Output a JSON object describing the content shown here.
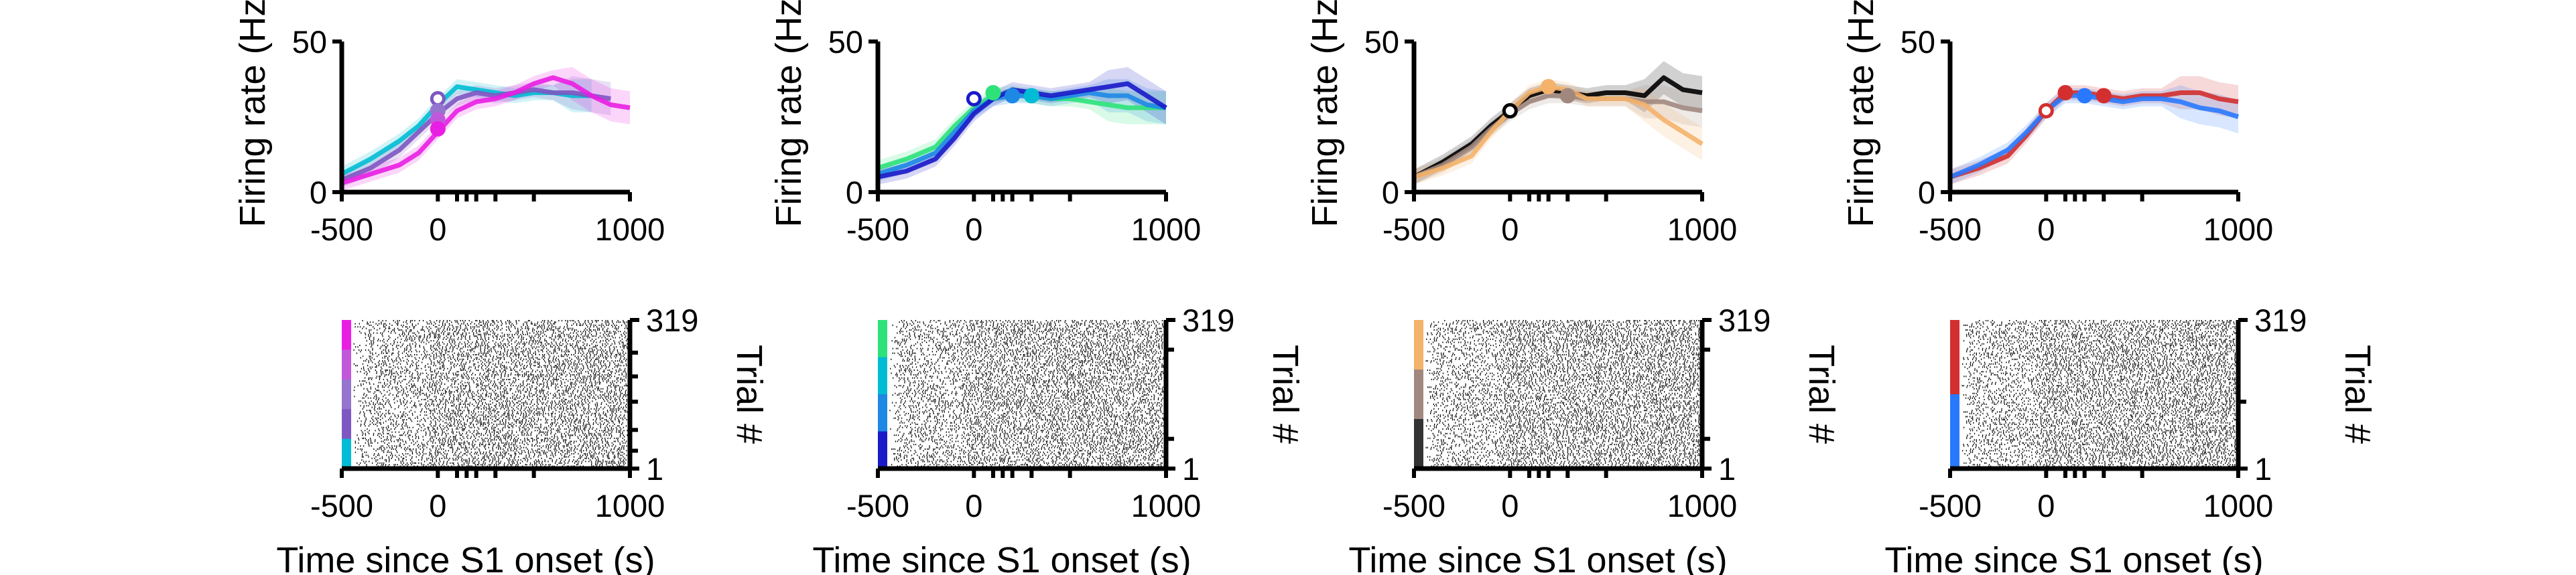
{
  "chart_data": [
    {
      "type": "line",
      "panel": "A-top",
      "ylabel": "Firing rate (Hz)",
      "xlim": [
        -500,
        1000
      ],
      "ylim": [
        0,
        50
      ],
      "xticks": [
        -500,
        0,
        1000
      ],
      "yticks": [
        0,
        50
      ],
      "minor_xticks": [
        100,
        150,
        200,
        300,
        500
      ],
      "series": [
        {
          "color": "#00bcd4",
          "x": [
            -500,
            -350,
            -200,
            -100,
            0,
            100,
            200,
            300,
            400,
            500,
            600,
            700,
            800
          ],
          "y": [
            6,
            11,
            17,
            22,
            29,
            35,
            34,
            33,
            32,
            33,
            33,
            32,
            32
          ]
        },
        {
          "color": "#7e57c2",
          "x": [
            -500,
            -350,
            -200,
            -100,
            0,
            100,
            200,
            300,
            400,
            500,
            600,
            700,
            800,
            900
          ],
          "y": [
            4,
            8,
            14,
            20,
            26,
            31,
            33,
            32,
            33,
            34,
            33,
            33,
            32,
            31
          ]
        },
        {
          "color": "#e91ee3",
          "x": [
            -500,
            -350,
            -200,
            -100,
            0,
            100,
            200,
            300,
            400,
            500,
            600,
            700,
            800,
            900,
            1000
          ],
          "y": [
            3,
            6,
            9,
            13,
            20,
            27,
            30,
            31,
            33,
            36,
            38,
            36,
            32,
            29,
            28
          ]
        }
      ],
      "markers": [
        {
          "color": "#7e57c2",
          "x": 0,
          "y": 31
        },
        {
          "color": "#9575cd",
          "x": 0,
          "y": 27
        },
        {
          "color": "#c158dc",
          "x": 0,
          "y": 24
        },
        {
          "color": "#e91ee3",
          "x": 0,
          "y": 21
        }
      ]
    },
    {
      "type": "line",
      "panel": "B-top",
      "ylabel": "Firing rate (Hz)",
      "xlim": [
        -500,
        1000
      ],
      "ylim": [
        0,
        50
      ],
      "xticks": [
        -500,
        0,
        1000
      ],
      "yticks": [
        0,
        50
      ],
      "minor_xticks": [
        100,
        150,
        200,
        300,
        500
      ],
      "series": [
        {
          "color": "#2ee27a",
          "x": [
            -500,
            -350,
            -200,
            -100,
            0,
            100,
            200,
            300,
            400,
            500,
            600,
            700,
            800,
            900,
            1000
          ],
          "y": [
            8,
            11,
            15,
            22,
            28,
            32,
            33,
            32,
            31,
            31,
            30,
            29,
            28,
            28,
            28
          ]
        },
        {
          "color": "#1e88e5",
          "x": [
            -500,
            -350,
            -200,
            -100,
            0,
            100,
            200,
            300,
            400,
            500,
            600,
            700,
            800,
            900,
            1000
          ],
          "y": [
            6,
            9,
            13,
            20,
            27,
            31,
            32,
            32,
            31,
            32,
            33,
            32,
            32,
            29,
            28
          ]
        },
        {
          "color": "#1a1ac8",
          "x": [
            -500,
            -350,
            -200,
            -100,
            0,
            100,
            200,
            300,
            400,
            500,
            600,
            700,
            800,
            900,
            1000
          ],
          "y": [
            5,
            7,
            11,
            18,
            26,
            31,
            34,
            33,
            32,
            33,
            34,
            35,
            36,
            32,
            28
          ]
        }
      ],
      "markers": [
        {
          "color": "#1a1ac8",
          "x": 0,
          "y": 31
        },
        {
          "color": "#2ee27a",
          "x": 100,
          "y": 33
        },
        {
          "color": "#1e88e5",
          "x": 200,
          "y": 32
        },
        {
          "color": "#00bcd4",
          "x": 300,
          "y": 32
        }
      ]
    },
    {
      "type": "line",
      "panel": "C-top",
      "ylabel": "Firing rate (Hz)",
      "xlim": [
        -500,
        1000
      ],
      "ylim": [
        0,
        50
      ],
      "xticks": [
        -500,
        0,
        1000
      ],
      "yticks": [
        0,
        50
      ],
      "minor_xticks": [
        100,
        150,
        200,
        300,
        500
      ],
      "series": [
        {
          "color": "#000000",
          "x": [
            -500,
            -350,
            -200,
            -100,
            0,
            100,
            200,
            300,
            400,
            500,
            600,
            700,
            800,
            900,
            1000
          ],
          "y": [
            5,
            10,
            16,
            22,
            27,
            32,
            34,
            33,
            32,
            33,
            33,
            32,
            38,
            34,
            33
          ]
        },
        {
          "color": "#a1887f",
          "x": [
            -500,
            -350,
            -200,
            -100,
            0,
            100,
            200,
            300,
            400,
            500,
            600,
            700,
            800,
            900,
            1000
          ],
          "y": [
            5,
            9,
            15,
            21,
            26,
            30,
            32,
            32,
            31,
            31,
            31,
            30,
            30,
            28,
            27
          ]
        },
        {
          "color": "#f4b26b",
          "x": [
            -500,
            -350,
            -200,
            -100,
            0,
            100,
            200,
            300,
            400,
            500,
            600,
            700,
            800,
            900,
            1000
          ],
          "y": [
            5,
            8,
            12,
            20,
            27,
            33,
            35,
            34,
            31,
            31,
            31,
            29,
            24,
            20,
            16
          ]
        }
      ],
      "markers": [
        {
          "color": "#000000",
          "x": 0,
          "y": 27
        },
        {
          "color": "#f4b26b",
          "x": 200,
          "y": 35
        },
        {
          "color": "#a1887f",
          "x": 300,
          "y": 32
        }
      ]
    },
    {
      "type": "line",
      "panel": "D-top",
      "ylabel": "Firing rate (Hz)",
      "xlim": [
        -500,
        1000
      ],
      "ylim": [
        0,
        50
      ],
      "xticks": [
        -500,
        0,
        1000
      ],
      "yticks": [
        0,
        50
      ],
      "minor_xticks": [
        100,
        150,
        200,
        300,
        500
      ],
      "series": [
        {
          "color": "#d32f2f",
          "x": [
            -500,
            -350,
            -200,
            -100,
            0,
            100,
            200,
            300,
            400,
            500,
            600,
            700,
            800,
            900,
            1000
          ],
          "y": [
            5,
            8,
            12,
            19,
            27,
            33,
            33,
            32,
            31,
            32,
            32,
            33,
            33,
            31,
            30
          ]
        },
        {
          "color": "#2979ff",
          "x": [
            -500,
            -350,
            -200,
            -100,
            0,
            100,
            200,
            300,
            400,
            500,
            600,
            700,
            800,
            900,
            1000
          ],
          "y": [
            5,
            9,
            14,
            20,
            27,
            32,
            32,
            31,
            30,
            31,
            31,
            30,
            28,
            27,
            25
          ]
        }
      ],
      "markers": [
        {
          "color": "#d32f2f",
          "x": 0,
          "y": 27
        },
        {
          "color": "#d32f2f",
          "x": 100,
          "y": 33
        },
        {
          "color": "#2979ff",
          "x": 200,
          "y": 32
        },
        {
          "color": "#d32f2f",
          "x": 300,
          "y": 32
        }
      ]
    },
    {
      "type": "raster",
      "panel": "A-bottom",
      "xlabel": "Time since S1 onset (s)",
      "ylabel": "Trial #",
      "xlim": [
        -500,
        1000
      ],
      "xticks": [
        -500,
        0,
        1000
      ],
      "minor_xticks": [
        100,
        150,
        200,
        300,
        500
      ],
      "ytick_labels": [
        "319",
        "1"
      ],
      "group_colors": [
        "#e91ee3",
        "#c158dc",
        "#9575cd",
        "#7e57c2",
        "#00bcd4"
      ],
      "right_minor_ticks": [
        0.22,
        0.38,
        0.55,
        0.74,
        0.88
      ]
    },
    {
      "type": "raster",
      "panel": "B-bottom",
      "xlabel": "Time since S1 onset (s)",
      "ylabel": "Trial #",
      "xlim": [
        -500,
        1000
      ],
      "xticks": [
        -500,
        0,
        1000
      ],
      "minor_xticks": [
        100,
        150,
        200,
        300,
        500
      ],
      "ytick_labels": [
        "319",
        "1"
      ],
      "group_colors": [
        "#2ee27a",
        "#00bcd4",
        "#1e88e5",
        "#1a1ac8"
      ],
      "right_minor_ticks": [
        0.2,
        0.8
      ]
    },
    {
      "type": "raster",
      "panel": "C-bottom",
      "xlabel": "Time since S1 onset (s)",
      "ylabel": "Trial #",
      "xlim": [
        -500,
        1000
      ],
      "xticks": [
        -500,
        0,
        1000
      ],
      "minor_xticks": [
        100,
        150,
        200,
        300,
        500
      ],
      "ytick_labels": [
        "319",
        "1"
      ],
      "group_colors": [
        "#f4b26b",
        "#a1887f",
        "#333333"
      ],
      "right_minor_ticks": [
        0.2,
        0.8
      ]
    },
    {
      "type": "raster",
      "panel": "D-bottom",
      "xlabel": "Time since S1 onset (s)",
      "ylabel": "Trial #",
      "xlim": [
        -500,
        1000
      ],
      "xticks": [
        -500,
        0,
        1000
      ],
      "minor_xticks": [
        100,
        150,
        200,
        300,
        500
      ],
      "ytick_labels": [
        "319",
        "1"
      ],
      "group_colors": [
        "#d32f2f",
        "#2979ff"
      ],
      "right_minor_ticks": [
        0.55
      ]
    }
  ]
}
